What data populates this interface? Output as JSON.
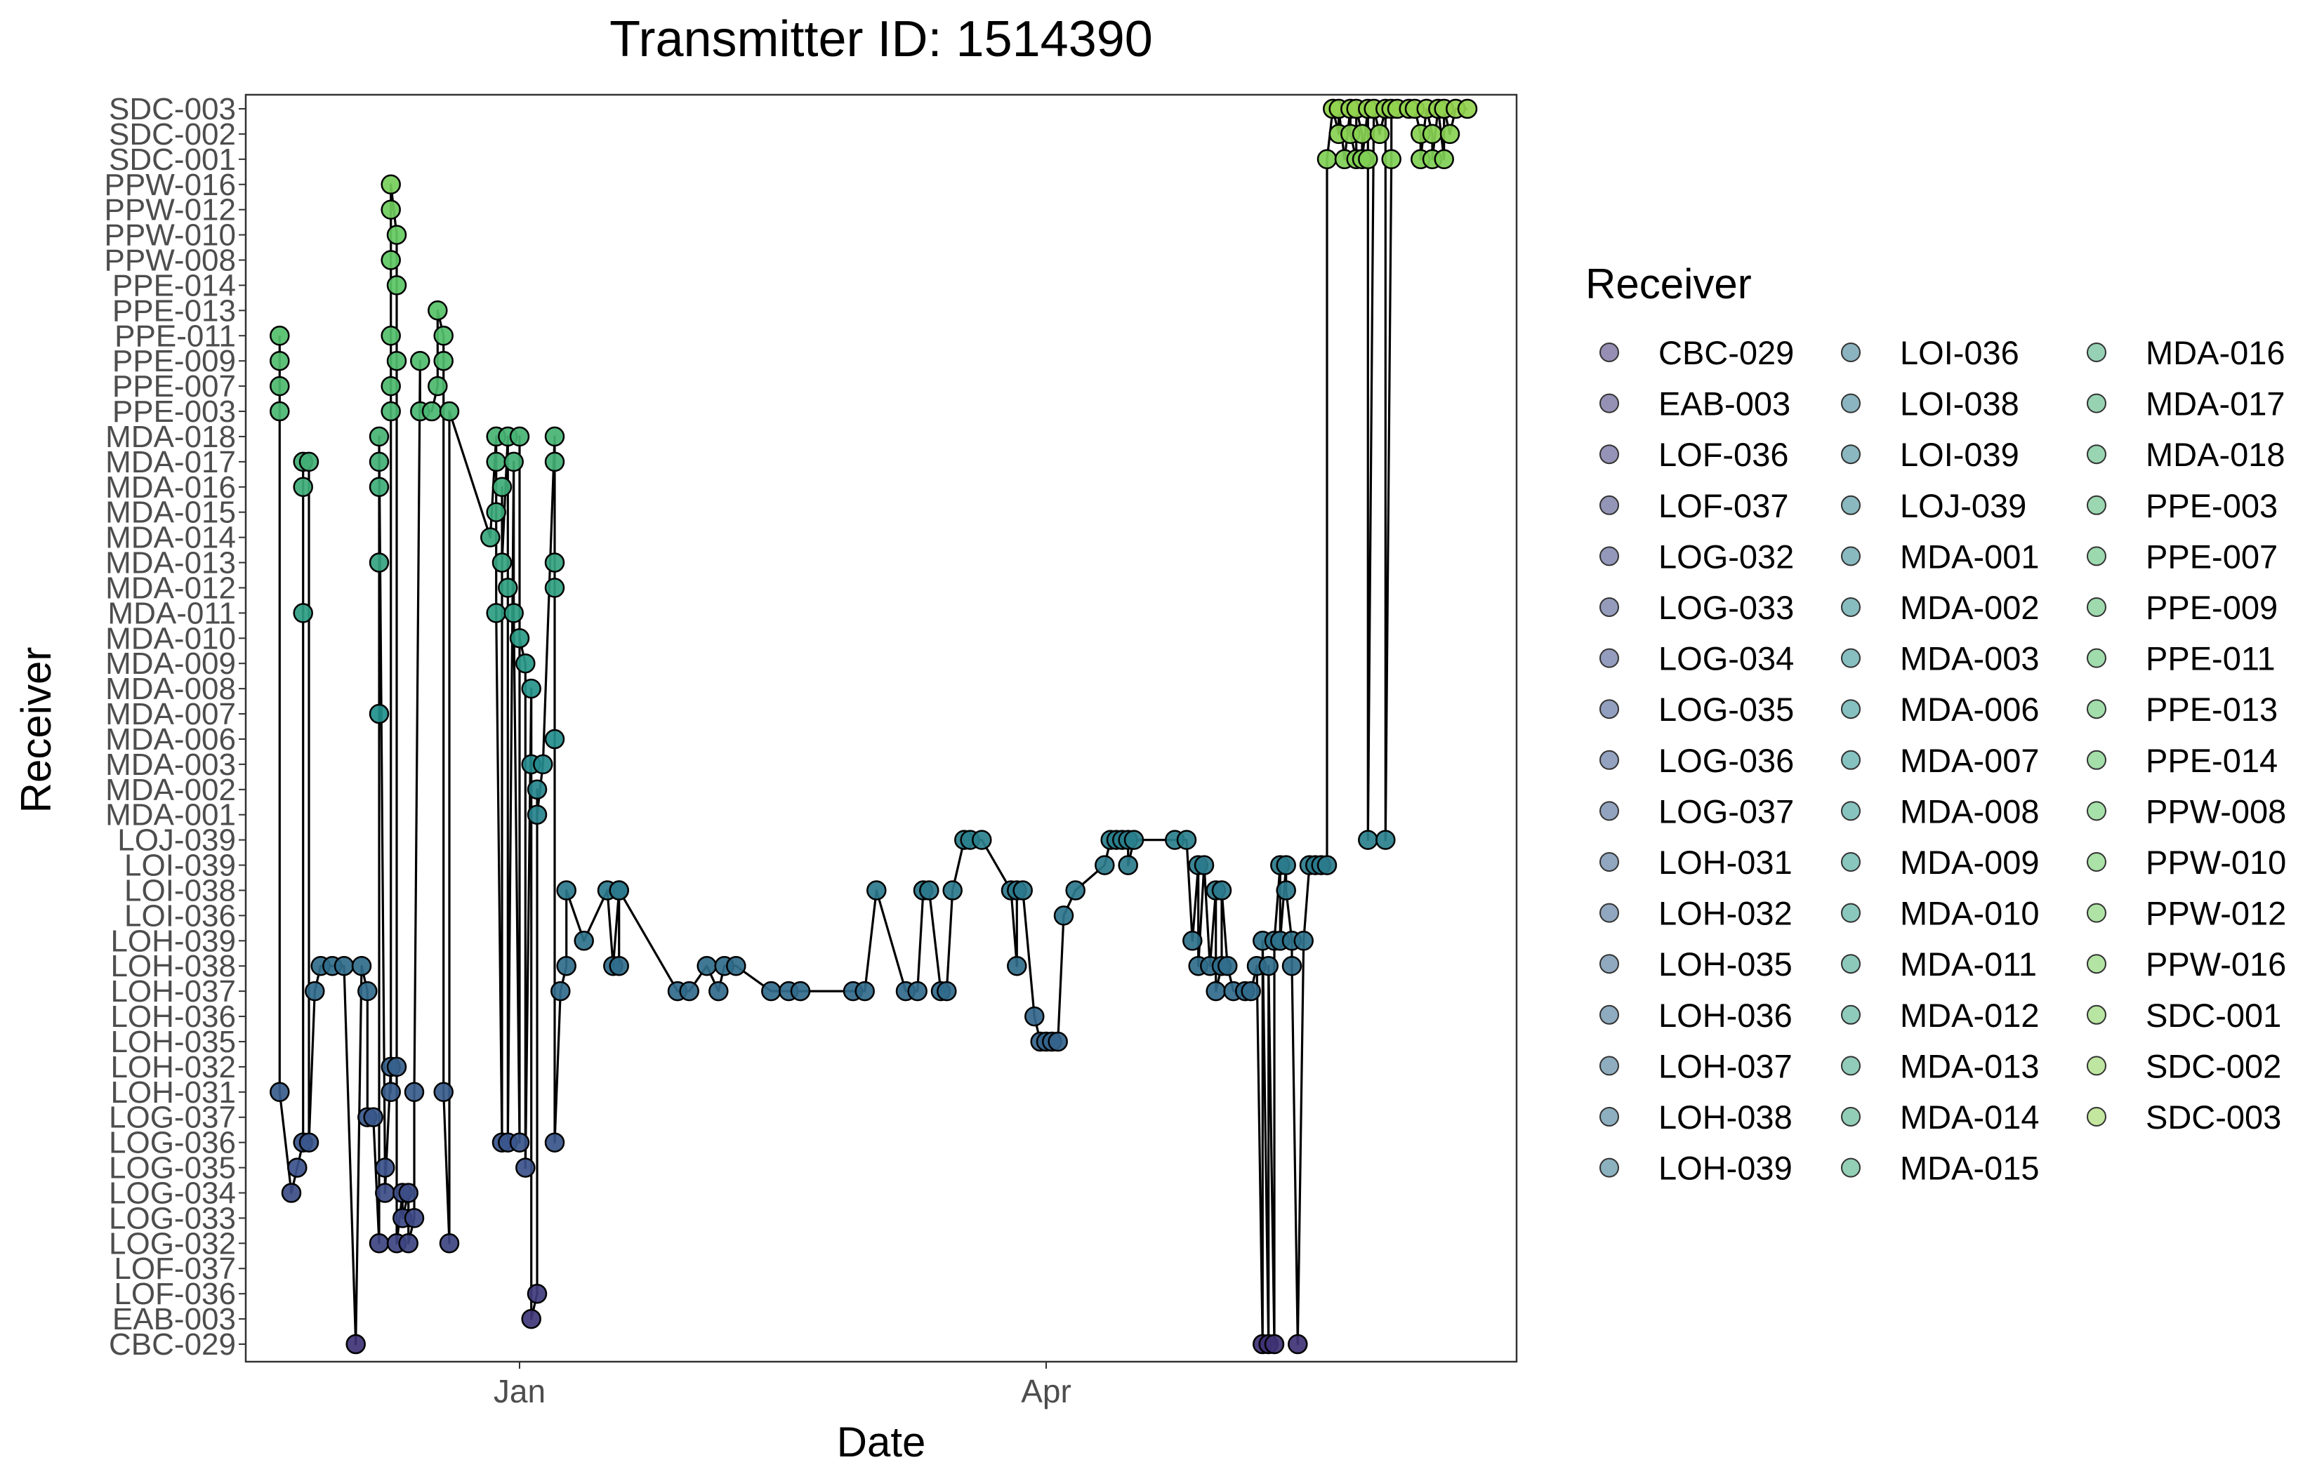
{
  "chart_data": {
    "type": "line",
    "title": "Transmitter ID: 1514390",
    "xlabel": "Date",
    "ylabel": "Receiver",
    "x_ticks": [
      "Jan",
      "Apr"
    ],
    "legend_title": "Receiver",
    "legend_position": "right",
    "grid": false,
    "receivers": [
      "CBC-029",
      "EAB-003",
      "LOF-036",
      "LOF-037",
      "LOG-032",
      "LOG-033",
      "LOG-034",
      "LOG-035",
      "LOG-036",
      "LOG-037",
      "LOH-031",
      "LOH-032",
      "LOH-035",
      "LOH-036",
      "LOH-037",
      "LOH-038",
      "LOH-039",
      "LOI-036",
      "LOI-038",
      "LOI-039",
      "LOJ-039",
      "MDA-001",
      "MDA-002",
      "MDA-003",
      "MDA-006",
      "MDA-007",
      "MDA-008",
      "MDA-009",
      "MDA-010",
      "MDA-011",
      "MDA-012",
      "MDA-013",
      "MDA-014",
      "MDA-015",
      "MDA-016",
      "MDA-017",
      "MDA-018",
      "PPE-003",
      "PPE-007",
      "PPE-009",
      "PPE-011",
      "PPE-013",
      "PPE-014",
      "PPW-008",
      "PPW-010",
      "PPW-012",
      "PPW-016",
      "SDC-001",
      "SDC-002",
      "SDC-003"
    ],
    "detections": [
      [
        "Nov 21",
        "PPE-011"
      ],
      [
        "Nov 21",
        "PPE-009"
      ],
      [
        "Nov 21",
        "PPE-007"
      ],
      [
        "Nov 21",
        "PPE-003"
      ],
      [
        "Nov 21",
        "LOH-031"
      ],
      [
        "Nov 23",
        "LOG-034"
      ],
      [
        "Nov 24",
        "LOG-035"
      ],
      [
        "Nov 25",
        "LOG-036"
      ],
      [
        "Nov 25",
        "MDA-011"
      ],
      [
        "Nov 25",
        "MDA-016"
      ],
      [
        "Nov 25",
        "MDA-017"
      ],
      [
        "Nov 26",
        "MDA-017"
      ],
      [
        "Nov 26",
        "LOG-036"
      ],
      [
        "Nov 27",
        "LOH-037"
      ],
      [
        "Nov 28",
        "LOH-038"
      ],
      [
        "Nov 30",
        "LOH-038"
      ],
      [
        "Dec 2",
        "LOH-038"
      ],
      [
        "Dec 4",
        "CBC-029"
      ],
      [
        "Dec 5",
        "LOH-038"
      ],
      [
        "Dec 6",
        "LOH-037"
      ],
      [
        "Dec 6",
        "LOG-037"
      ],
      [
        "Dec 7",
        "LOG-037"
      ],
      [
        "Dec 8",
        "LOG-032"
      ],
      [
        "Dec 8",
        "MDA-007"
      ],
      [
        "Dec 8",
        "MDA-013"
      ],
      [
        "Dec 8",
        "MDA-017"
      ],
      [
        "Dec 8",
        "MDA-016"
      ],
      [
        "Dec 8",
        "MDA-018"
      ],
      [
        "Dec 9",
        "LOG-035"
      ],
      [
        "Dec 9",
        "LOG-034"
      ],
      [
        "Dec 10",
        "LOH-032"
      ],
      [
        "Dec 10",
        "LOH-031"
      ],
      [
        "Dec 10",
        "PPE-003"
      ],
      [
        "Dec 10",
        "PPE-007"
      ],
      [
        "Dec 10",
        "PPE-011"
      ],
      [
        "Dec 10",
        "PPW-008"
      ],
      [
        "Dec 10",
        "PPW-012"
      ],
      [
        "Dec 10",
        "PPW-016"
      ],
      [
        "Dec 11",
        "PPW-010"
      ],
      [
        "Dec 11",
        "PPE-014"
      ],
      [
        "Dec 11",
        "PPE-009"
      ],
      [
        "Dec 11",
        "LOH-032"
      ],
      [
        "Dec 11",
        "LOG-032"
      ],
      [
        "Dec 12",
        "LOG-034"
      ],
      [
        "Dec 12",
        "LOG-033"
      ],
      [
        "Dec 13",
        "LOG-034"
      ],
      [
        "Dec 13",
        "LOG-032"
      ],
      [
        "Dec 14",
        "LOG-033"
      ],
      [
        "Dec 14",
        "LOH-031"
      ],
      [
        "Dec 15",
        "PPE-009"
      ],
      [
        "Dec 15",
        "PPE-003"
      ],
      [
        "Dec 17",
        "PPE-003"
      ],
      [
        "Dec 18",
        "PPE-007"
      ],
      [
        "Dec 18",
        "PPE-013"
      ],
      [
        "Dec 19",
        "PPE-011"
      ],
      [
        "Dec 19",
        "PPE-009"
      ],
      [
        "Dec 19",
        "LOH-031"
      ],
      [
        "Dec 20",
        "LOG-032"
      ],
      [
        "Dec 20",
        "PPE-003"
      ],
      [
        "Dec 27",
        "MDA-014"
      ],
      [
        "Dec 28",
        "MDA-018"
      ],
      [
        "Dec 28",
        "MDA-017"
      ],
      [
        "Dec 28",
        "MDA-015"
      ],
      [
        "Dec 28",
        "MDA-011"
      ],
      [
        "Dec 29",
        "LOG-036"
      ],
      [
        "Dec 29",
        "MDA-016"
      ],
      [
        "Dec 29",
        "MDA-013"
      ],
      [
        "Dec 30",
        "MDA-018"
      ],
      [
        "Dec 30",
        "MDA-012"
      ],
      [
        "Dec 30",
        "LOG-036"
      ],
      [
        "Dec 31",
        "MDA-017"
      ],
      [
        "Dec 31",
        "MDA-011"
      ],
      [
        "Jan 1",
        "LOG-036"
      ],
      [
        "Jan 1",
        "MDA-018"
      ],
      [
        "Jan 1",
        "MDA-010"
      ],
      [
        "Jan 2",
        "MDA-009"
      ],
      [
        "Jan 2",
        "LOG-035"
      ],
      [
        "Jan 3",
        "MDA-008"
      ],
      [
        "Jan 3",
        "MDA-003"
      ],
      [
        "Jan 3",
        "EAB-003"
      ],
      [
        "Jan 4",
        "LOF-036"
      ],
      [
        "Jan 4",
        "MDA-002"
      ],
      [
        "Jan 4",
        "MDA-001"
      ],
      [
        "Jan 5",
        "MDA-003"
      ],
      [
        "Jan 7",
        "MDA-018"
      ],
      [
        "Jan 7",
        "MDA-017"
      ],
      [
        "Jan 7",
        "MDA-013"
      ],
      [
        "Jan 7",
        "MDA-012"
      ],
      [
        "Jan 7",
        "MDA-006"
      ],
      [
        "Jan 7",
        "LOG-036"
      ],
      [
        "Jan 8",
        "LOH-037"
      ],
      [
        "Jan 9",
        "LOH-038"
      ],
      [
        "Jan 9",
        "LOI-038"
      ],
      [
        "Jan 12",
        "LOH-039"
      ],
      [
        "Jan 16",
        "LOI-038"
      ],
      [
        "Jan 17",
        "LOH-038"
      ],
      [
        "Jan 18",
        "LOI-038"
      ],
      [
        "Jan 18",
        "LOH-038"
      ],
      [
        "Jan 18",
        "LOI-038"
      ],
      [
        "Jan 28",
        "LOH-037"
      ],
      [
        "Jan 30",
        "LOH-037"
      ],
      [
        "Feb 2",
        "LOH-038"
      ],
      [
        "Feb 4",
        "LOH-037"
      ],
      [
        "Feb 5",
        "LOH-038"
      ],
      [
        "Feb 7",
        "LOH-038"
      ],
      [
        "Feb 13",
        "LOH-037"
      ],
      [
        "Feb 16",
        "LOH-037"
      ],
      [
        "Feb 18",
        "LOH-037"
      ],
      [
        "Feb 27",
        "LOH-037"
      ],
      [
        "Mar 1",
        "LOH-037"
      ],
      [
        "Mar 3",
        "LOI-038"
      ],
      [
        "Mar 8",
        "LOH-037"
      ],
      [
        "Mar 10",
        "LOH-037"
      ],
      [
        "Mar 11",
        "LOI-038"
      ],
      [
        "Mar 12",
        "LOI-038"
      ],
      [
        "Mar 14",
        "LOH-037"
      ],
      [
        "Mar 15",
        "LOH-037"
      ],
      [
        "Mar 16",
        "LOI-038"
      ],
      [
        "Mar 18",
        "LOJ-039"
      ],
      [
        "Mar 19",
        "LOJ-039"
      ],
      [
        "Mar 21",
        "LOJ-039"
      ],
      [
        "Mar 26",
        "LOI-038"
      ],
      [
        "Mar 27",
        "LOH-038"
      ],
      [
        "Mar 27",
        "LOI-038"
      ],
      [
        "Mar 28",
        "LOI-038"
      ],
      [
        "Mar 30",
        "LOH-036"
      ],
      [
        "Mar 31",
        "LOH-035"
      ],
      [
        "Apr 1",
        "LOH-035"
      ],
      [
        "Apr 2",
        "LOH-035"
      ],
      [
        "Apr 3",
        "LOH-035"
      ],
      [
        "Apr 4",
        "LOI-036"
      ],
      [
        "Apr 6",
        "LOI-038"
      ],
      [
        "Apr 11",
        "LOI-039"
      ],
      [
        "Apr 12",
        "LOJ-039"
      ],
      [
        "Apr 13",
        "LOJ-039"
      ],
      [
        "Apr 14",
        "LOJ-039"
      ],
      [
        "Apr 15",
        "LOJ-039"
      ],
      [
        "Apr 15",
        "LOI-039"
      ],
      [
        "Apr 16",
        "LOJ-039"
      ],
      [
        "Apr 23",
        "LOJ-039"
      ],
      [
        "Apr 25",
        "LOJ-039"
      ],
      [
        "Apr 26",
        "LOH-039"
      ],
      [
        "Apr 27",
        "LOI-039"
      ],
      [
        "Apr 27",
        "LOH-038"
      ],
      [
        "Apr 28",
        "LOI-039"
      ],
      [
        "Apr 29",
        "LOH-038"
      ],
      [
        "Apr 30",
        "LOI-038"
      ],
      [
        "Apr 30",
        "LOH-037"
      ],
      [
        "May 1",
        "LOH-038"
      ],
      [
        "May 1",
        "LOI-038"
      ],
      [
        "May 2",
        "LOH-038"
      ],
      [
        "May 3",
        "LOH-037"
      ],
      [
        "May 5",
        "LOH-037"
      ],
      [
        "May 6",
        "LOH-037"
      ],
      [
        "May 7",
        "LOH-038"
      ],
      [
        "May 8",
        "CBC-029"
      ],
      [
        "May 8",
        "LOH-039"
      ],
      [
        "May 9",
        "CBC-029"
      ],
      [
        "May 9",
        "LOH-038"
      ],
      [
        "May 10",
        "CBC-029"
      ],
      [
        "May 10",
        "LOH-039"
      ],
      [
        "May 11",
        "LOI-039"
      ],
      [
        "May 11",
        "LOH-039"
      ],
      [
        "May 12",
        "LOI-039"
      ],
      [
        "May 12",
        "LOI-038"
      ],
      [
        "May 13",
        "LOH-039"
      ],
      [
        "May 13",
        "LOH-038"
      ],
      [
        "May 14",
        "CBC-029"
      ],
      [
        "May 15",
        "LOH-039"
      ],
      [
        "May 16",
        "LOI-039"
      ],
      [
        "May 17",
        "LOI-039"
      ],
      [
        "May 18",
        "LOI-039"
      ],
      [
        "May 19",
        "LOI-039"
      ],
      [
        "May 19",
        "SDC-001"
      ],
      [
        "May 20",
        "SDC-003"
      ],
      [
        "May 21",
        "SDC-002"
      ],
      [
        "May 21",
        "SDC-003"
      ],
      [
        "May 22",
        "SDC-001"
      ],
      [
        "May 23",
        "SDC-003"
      ],
      [
        "May 23",
        "SDC-002"
      ],
      [
        "May 24",
        "SDC-001"
      ],
      [
        "May 24",
        "SDC-003"
      ],
      [
        "May 25",
        "SDC-002"
      ],
      [
        "May 25",
        "SDC-001"
      ],
      [
        "May 26",
        "SDC-003"
      ],
      [
        "May 26",
        "SDC-001"
      ],
      [
        "May 26",
        "LOJ-039"
      ],
      [
        "May 27",
        "SDC-003"
      ],
      [
        "May 28",
        "SDC-002"
      ],
      [
        "May 29",
        "SDC-003"
      ],
      [
        "May 29",
        "LOJ-039"
      ],
      [
        "May 30",
        "SDC-001"
      ],
      [
        "May 30",
        "SDC-003"
      ],
      [
        "May 31",
        "SDC-003"
      ],
      [
        "Jun 2",
        "SDC-003"
      ],
      [
        "Jun 3",
        "SDC-003"
      ],
      [
        "Jun 4",
        "SDC-002"
      ],
      [
        "Jun 4",
        "SDC-001"
      ],
      [
        "Jun 5",
        "SDC-003"
      ],
      [
        "Jun 6",
        "SDC-002"
      ],
      [
        "Jun 6",
        "SDC-001"
      ],
      [
        "Jun 7",
        "SDC-003"
      ],
      [
        "Jun 8",
        "SDC-001"
      ],
      [
        "Jun 8",
        "SDC-003"
      ],
      [
        "Jun 9",
        "SDC-002"
      ],
      [
        "Jun 10",
        "SDC-003"
      ],
      [
        "Jun 12",
        "SDC-003"
      ]
    ]
  }
}
